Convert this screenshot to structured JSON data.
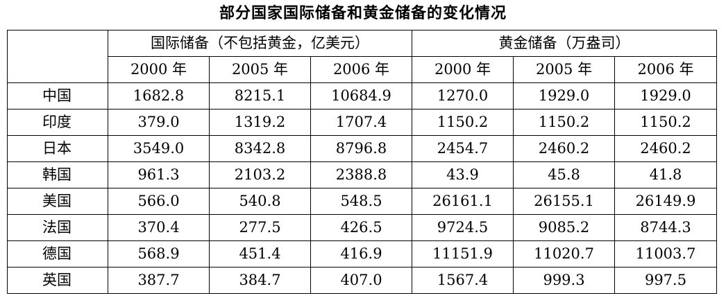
{
  "title": "部分国家国际储备和黄金储备的变化情况",
  "headers": {
    "group_reserves": "国际储备（不包括黄金，亿美元）",
    "group_gold": "黄金储备（万盎司）",
    "years": [
      "2000 年",
      "2005 年",
      "2006 年",
      "2000 年",
      "2005 年",
      "2006 年"
    ]
  },
  "rows": [
    {
      "country": "中国",
      "values": [
        "1682.8",
        "8215.1",
        "10684.9",
        "1270.0",
        "1929.0",
        "1929.0"
      ]
    },
    {
      "country": "印度",
      "values": [
        "379.0",
        "1319.2",
        "1707.4",
        "1150.2",
        "1150.2",
        "1150.2"
      ]
    },
    {
      "country": "日本",
      "values": [
        "3549.0",
        "8342.8",
        "8796.8",
        "2454.7",
        "2460.2",
        "2460.2"
      ]
    },
    {
      "country": "韩国",
      "values": [
        "961.3",
        "2103.2",
        "2388.8",
        "43.9",
        "45.8",
        "41.8"
      ]
    },
    {
      "country": "美国",
      "values": [
        "566.0",
        "540.8",
        "548.5",
        "26161.1",
        "26155.1",
        "26149.9"
      ]
    },
    {
      "country": "法国",
      "values": [
        "370.4",
        "277.5",
        "426.5",
        "9724.5",
        "9085.2",
        "8744.3"
      ]
    },
    {
      "country": "德国",
      "values": [
        "568.9",
        "451.4",
        "416.9",
        "11151.9",
        "11020.7",
        "11003.7"
      ]
    },
    {
      "country": "英国",
      "values": [
        "387.7",
        "384.7",
        "407.0",
        "1567.4",
        "999.3",
        "997.5"
      ]
    }
  ]
}
